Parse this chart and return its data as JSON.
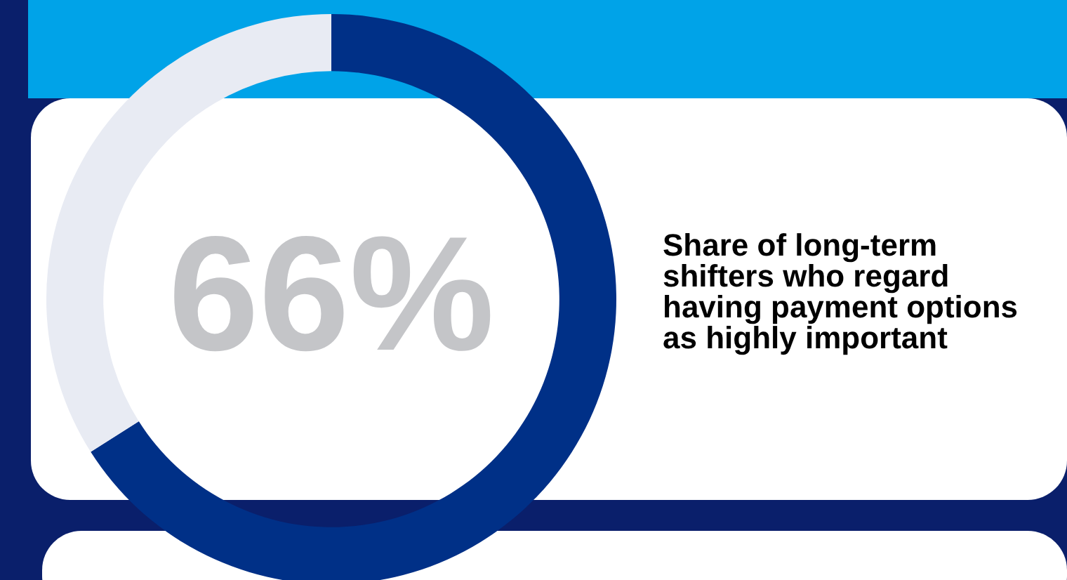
{
  "chart_data": {
    "type": "donut",
    "title": "Share of long-term shifters who regard having payment options as highly important",
    "categories": [
      null,
      null
    ],
    "values": [
      66,
      34
    ],
    "colors": [
      "#003087",
      "#e8ebf3"
    ],
    "annotations": [
      "66%"
    ],
    "legend": false
  }
}
